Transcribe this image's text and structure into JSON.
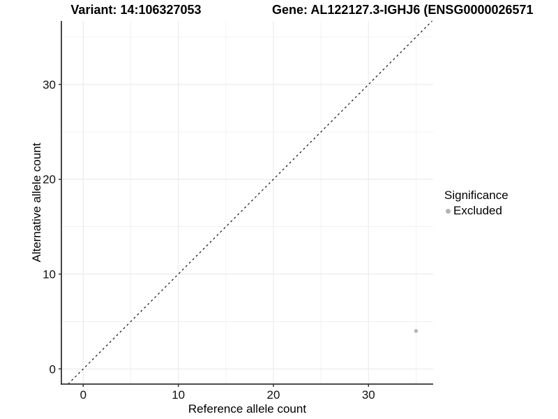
{
  "titles": {
    "variant": "Variant: 14:106327053",
    "gene": "Gene: AL122127.3-IGHJ6 (ENSG0000026571"
  },
  "chart_data": {
    "type": "scatter",
    "title_left": "Variant: 14:106327053",
    "title_right": "Gene: AL122127.3-IGHJ6 (ENSG0000026571",
    "xlabel": "Reference allele count",
    "ylabel": "Alternative allele count",
    "xlim": [
      -2.3,
      36.8
    ],
    "ylim": [
      -1.6,
      36.7
    ],
    "x_major_ticks": [
      0,
      10,
      20,
      30
    ],
    "x_minor_gridlines": [
      5,
      15,
      25,
      35
    ],
    "y_major_ticks": [
      0,
      10,
      20,
      30
    ],
    "y_minor_gridlines": [
      5,
      15,
      25,
      35
    ],
    "grid": true,
    "series": [
      {
        "name": "Excluded",
        "color": "#b4b4b4",
        "points": [
          {
            "x": 35,
            "y": 4
          }
        ]
      }
    ],
    "reference_line": {
      "style": "dashed",
      "slope": 1,
      "intercept": 0,
      "color": "#111111"
    },
    "legend": {
      "title": "Significance",
      "position": "right",
      "entries": [
        {
          "label": "Excluded",
          "color": "#b4b4b4"
        }
      ]
    },
    "colors": {
      "gridline": "#ececec",
      "axis_line": "#333333",
      "tick_label": "#111111"
    }
  }
}
